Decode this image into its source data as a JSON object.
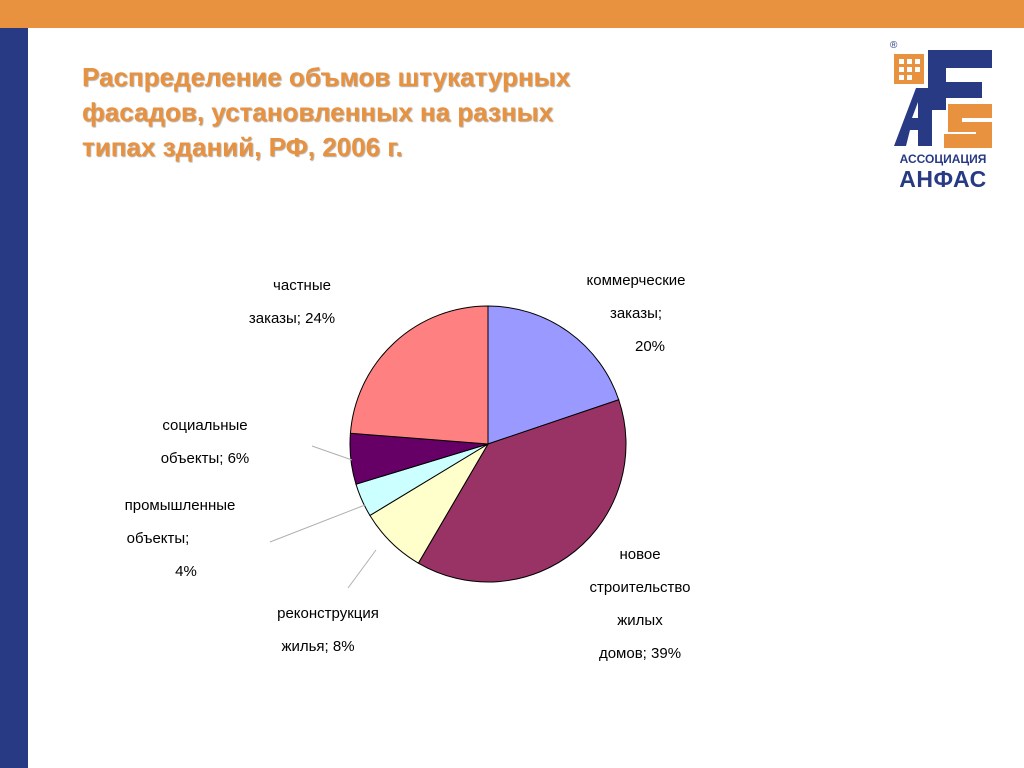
{
  "slide": {
    "title": "Распределение объмов штукатурных\nфасадов, установленных на разных\nтипах зданий, РФ, 2006 г.",
    "accent_color": "#e8913f",
    "side_color": "#283a84"
  },
  "logo": {
    "text_line1": "АССОЦИАЦИЯ",
    "text_line2": "АНФАС",
    "registered_mark": "®"
  },
  "chart_data": {
    "type": "pie",
    "start": "12 o'clock, clockwise",
    "slices": [
      {
        "label_lines": [
          "коммерческие",
          "заказы;",
          "20%"
        ],
        "value": 20,
        "color": "#9999ff"
      },
      {
        "label_lines": [
          "новое",
          "строительство",
          "жилых",
          "домов; 39%"
        ],
        "value": 39,
        "color": "#993366"
      },
      {
        "label_lines": [
          "реконструкция",
          "жилья; 8%"
        ],
        "value": 8,
        "color": "#ffffcc"
      },
      {
        "label_lines": [
          "промышленные",
          "объекты;",
          "4%"
        ],
        "value": 4,
        "color": "#ccffff"
      },
      {
        "label_lines": [
          "социальные",
          "объекты; 6%"
        ],
        "value": 6,
        "color": "#660066"
      },
      {
        "label_lines": [
          "частные",
          "заказы; 24%"
        ],
        "value": 24,
        "color": "#ff8080"
      }
    ]
  }
}
